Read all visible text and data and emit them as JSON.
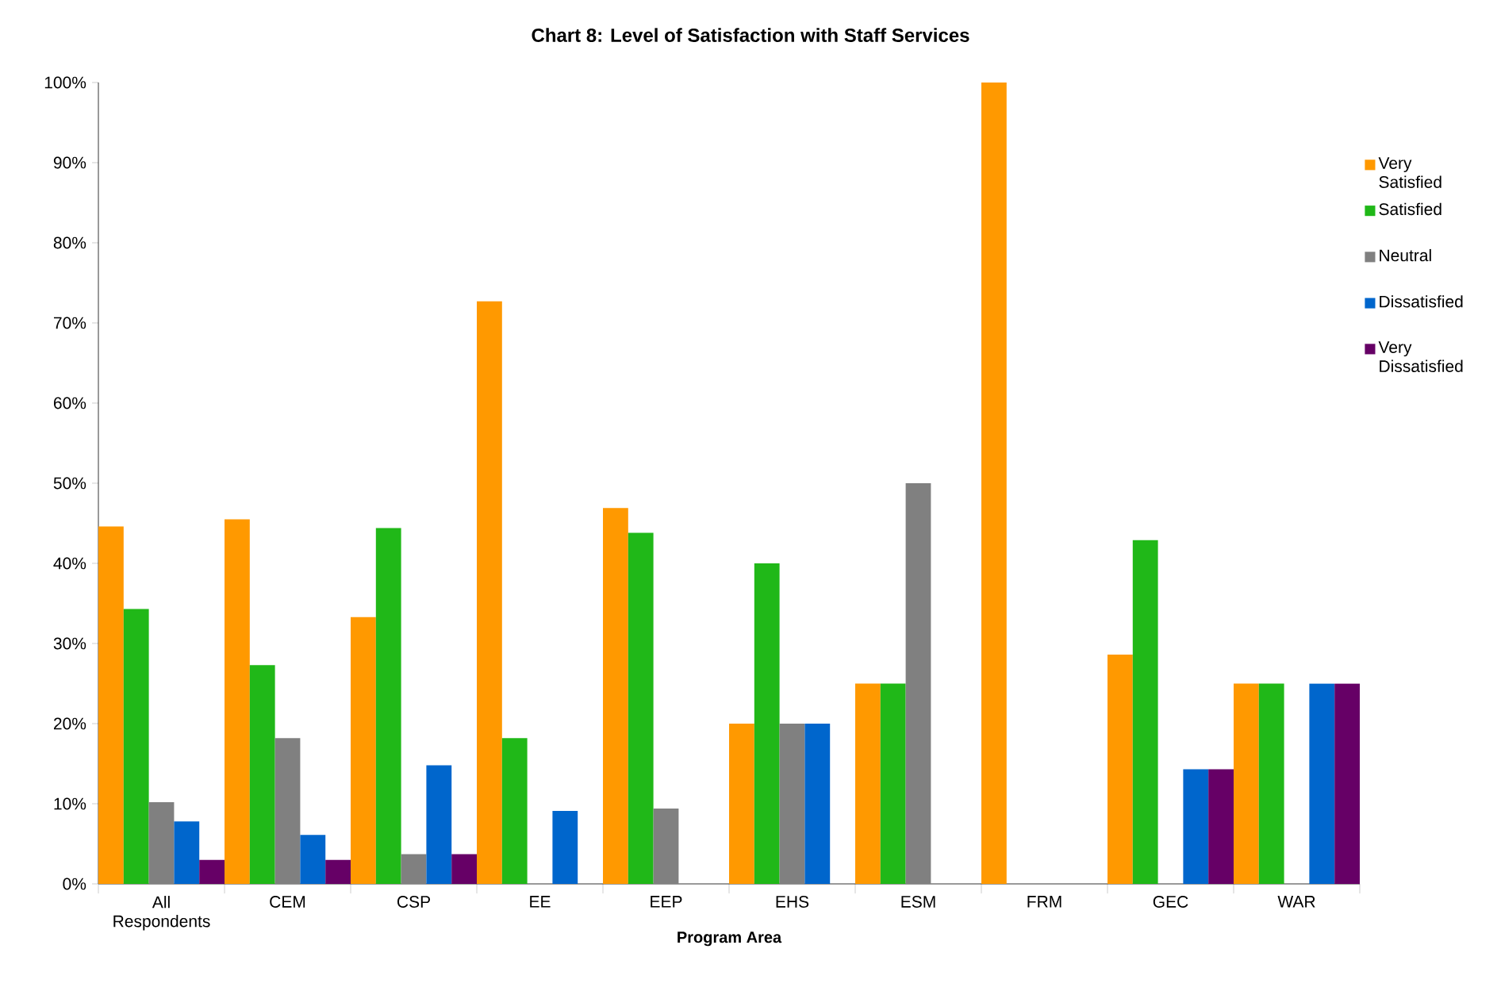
{
  "chart_data": {
    "type": "bar",
    "title": "Chart 8: Level of Satisfaction with Staff Services",
    "xlabel": "Program Area",
    "categories": [
      "All Respondents",
      "CEM",
      "CSP",
      "EE",
      "EEP",
      "EHS",
      "ESM",
      "FRM",
      "GEC",
      "WAR"
    ],
    "series": [
      {
        "name": "Very Satisfied",
        "color": "#ff9900",
        "values": [
          44.6,
          45.5,
          33.3,
          72.7,
          46.9,
          20,
          25,
          100,
          28.6,
          25
        ]
      },
      {
        "name": "Satisfied",
        "color": "#20b818",
        "values": [
          34.3,
          27.3,
          44.4,
          18.2,
          43.8,
          40,
          25,
          0,
          42.9,
          25
        ]
      },
      {
        "name": "Neutral",
        "color": "#808080",
        "values": [
          10.2,
          18.2,
          3.7,
          0,
          9.4,
          20,
          50,
          0,
          0,
          0
        ]
      },
      {
        "name": "Dissatisfied",
        "color": "#0066cc",
        "values": [
          7.8,
          6.1,
          14.8,
          9.1,
          0,
          20,
          0,
          0,
          14.3,
          25
        ]
      },
      {
        "name": "Very Dissatisfied",
        "color": "#660066",
        "values": [
          3.0,
          3.0,
          3.7,
          0,
          0,
          0,
          0,
          0,
          14.3,
          25
        ]
      }
    ],
    "ylim": [
      0,
      100
    ],
    "yticks": [
      {
        "value": 0,
        "label": "0%"
      },
      {
        "value": 10,
        "label": "10%"
      },
      {
        "value": 20,
        "label": "20%"
      },
      {
        "value": 30,
        "label": "30%"
      },
      {
        "value": 40,
        "label": "40%"
      },
      {
        "value": 50,
        "label": "50%"
      },
      {
        "value": 60,
        "label": "60%"
      },
      {
        "value": 70,
        "label": "70%"
      },
      {
        "value": 80,
        "label": "80%"
      },
      {
        "value": 90,
        "label": "90%"
      },
      {
        "value": 100,
        "label": "100%"
      }
    ],
    "grid": false,
    "legend": "right"
  }
}
